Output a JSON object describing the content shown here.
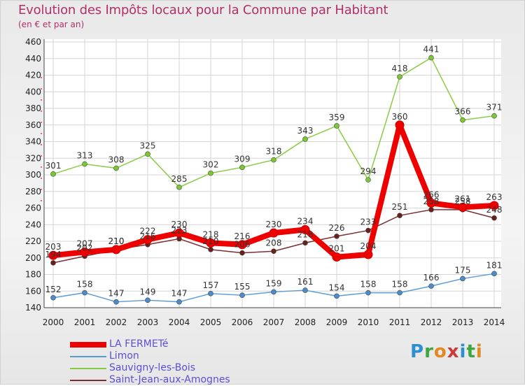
{
  "title": "Evolution des Impôts locaux pour la Commune par Habitant",
  "subtitle": "(en € et par an)",
  "logo": {
    "letters": [
      "P",
      "r",
      "o",
      "x",
      "i",
      "t",
      "i"
    ]
  },
  "chart_data": {
    "type": "line",
    "x": [
      "2000",
      "2001",
      "2002",
      "2003",
      "2004",
      "2005",
      "2006",
      "2007",
      "2008",
      "2009",
      "2010",
      "2011",
      "2012",
      "2013",
      "2014"
    ],
    "ylim": [
      140,
      460
    ],
    "yticks": [
      140,
      160,
      180,
      200,
      220,
      240,
      260,
      280,
      300,
      320,
      340,
      360,
      380,
      400,
      420,
      440,
      460
    ],
    "grid": true,
    "series": [
      {
        "name": "Sauvigny-les-Bois",
        "color": "#88cc44",
        "point_color": "#7cc832",
        "labels": [
          "301",
          "313",
          "308",
          "325",
          "285",
          "302",
          "309",
          "318",
          "343",
          "359",
          "294",
          "418",
          "441",
          "366",
          "371"
        ],
        "values": [
          301,
          313,
          308,
          325,
          285,
          302,
          309,
          318,
          343,
          359,
          294,
          418,
          441,
          366,
          371
        ]
      },
      {
        "name": "Limon",
        "color": "#5b9bd5",
        "point_color": "#4a8ccc",
        "labels": [
          "152",
          "158",
          "147",
          "149",
          "147",
          "157",
          "155",
          "159",
          "161",
          "154",
          "158",
          "158",
          "166",
          "175",
          "181"
        ],
        "values": [
          152,
          158,
          147,
          149,
          147,
          157,
          155,
          159,
          161,
          154,
          158,
          158,
          166,
          175,
          181
        ]
      },
      {
        "name": "Saint-Jean-aux-Amognes",
        "color": "#7a3030",
        "point_color": "#6a1f1f",
        "labels": [
          "194",
          "202",
          "210",
          "216",
          "223",
          "210",
          "206",
          "208",
          "218",
          "226",
          "233",
          "251",
          "258",
          "258",
          "248"
        ],
        "values": [
          194,
          202,
          210,
          216,
          223,
          210,
          206,
          208,
          218,
          226,
          233,
          251,
          258,
          258,
          248
        ]
      },
      {
        "name": "LA FERMETé",
        "color": "#ee0000",
        "point_color": "#ee0000",
        "labels": [
          "203",
          "207",
          "210",
          "222",
          "230",
          "218",
          "216",
          "230",
          "234",
          "201",
          "204",
          "360",
          "266",
          "261",
          "263"
        ],
        "values": [
          203,
          207,
          210,
          222,
          230,
          218,
          216,
          230,
          234,
          201,
          204,
          360,
          266,
          261,
          263
        ]
      }
    ],
    "legend": [
      {
        "name": "LA FERMETé",
        "color": "#ee0000",
        "thickness": 8
      },
      {
        "name": "Limon",
        "color": "#5b9bd5",
        "thickness": 2
      },
      {
        "name": "Sauvigny-les-Bois",
        "color": "#88cc44",
        "thickness": 2
      },
      {
        "name": "Saint-Jean-aux-Amognes",
        "color": "#7a3030",
        "thickness": 2
      }
    ]
  }
}
